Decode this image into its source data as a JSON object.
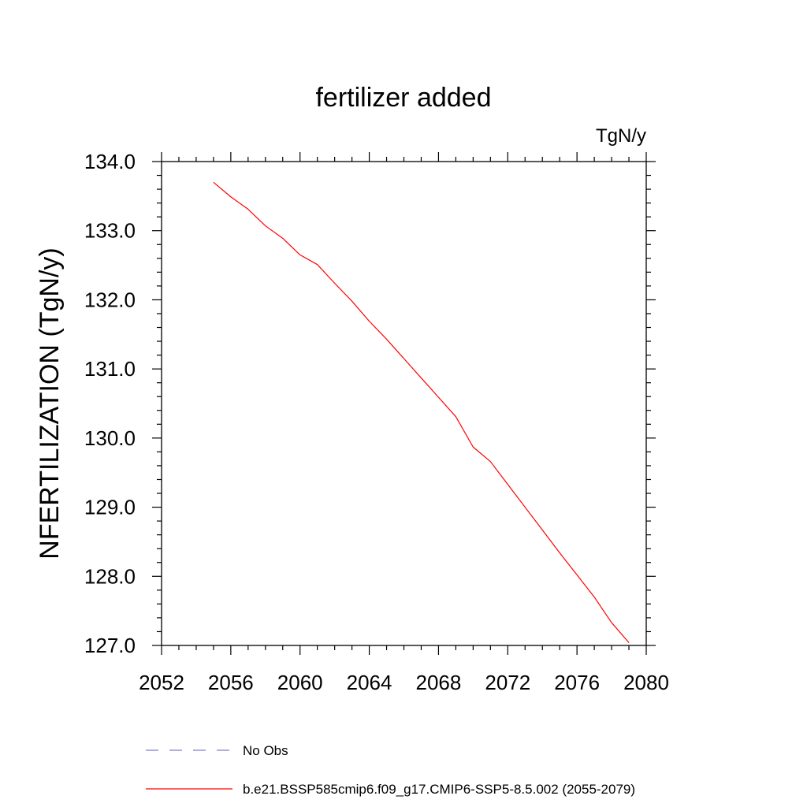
{
  "chart_data": {
    "type": "line",
    "title": "fertilizer added",
    "units_label": "TgN/y",
    "xlabel": "",
    "ylabel": "NFERTILIZATION  (TgN/y)",
    "xlim": [
      2052,
      2080
    ],
    "ylim": [
      127.0,
      134.0
    ],
    "x_ticks": [
      2052,
      2056,
      2060,
      2064,
      2068,
      2072,
      2076,
      2080
    ],
    "y_ticks": [
      "127.0",
      "128.0",
      "129.0",
      "130.0",
      "131.0",
      "132.0",
      "133.0",
      "134.0"
    ],
    "grid": false,
    "legend_position": "bottom",
    "series": [
      {
        "name": "b.e21.BSSP585cmip6.f09_g17.CMIP6-SSP5-8.5.002 (2055-2079)",
        "color": "#ff0000",
        "style": "solid",
        "x": [
          2055,
          2056,
          2057,
          2058,
          2059,
          2060,
          2061,
          2062,
          2063,
          2064,
          2065,
          2066,
          2067,
          2068,
          2069,
          2070,
          2071,
          2072,
          2073,
          2074,
          2075,
          2076,
          2077,
          2078,
          2079
        ],
        "y": [
          133.7,
          133.49,
          133.31,
          133.07,
          132.89,
          132.65,
          132.51,
          132.24,
          131.98,
          131.69,
          131.43,
          131.15,
          130.87,
          130.59,
          130.31,
          129.87,
          129.66,
          129.33,
          129.0,
          128.67,
          128.34,
          128.02,
          127.7,
          127.33,
          127.04
        ]
      }
    ],
    "legend": [
      {
        "label": "No Obs",
        "color": "#7f7fcc",
        "style": "dashed"
      },
      {
        "label": "b.e21.BSSP585cmip6.f09_g17.CMIP6-SSP5-8.5.002 (2055-2079)",
        "color": "#ff0000",
        "style": "solid"
      }
    ]
  }
}
